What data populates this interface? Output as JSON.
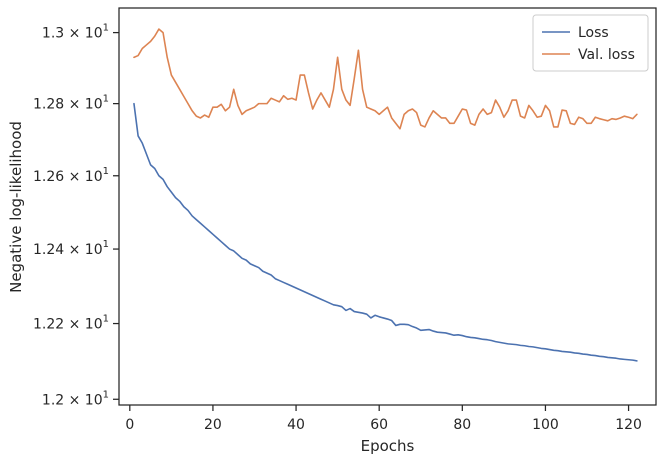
{
  "chart_data": {
    "type": "line",
    "title": "",
    "xlabel": "Epochs",
    "ylabel": "Negative log-likelihood",
    "xlim": [
      -2.6,
      126.6
    ],
    "ylim": [
      11.985,
      13.07
    ],
    "yscale": "log",
    "grid": false,
    "legend_position": "top-right",
    "x_ticks": [
      0,
      20,
      40,
      60,
      80,
      100,
      120
    ],
    "x_tick_labels": [
      "0",
      "20",
      "40",
      "60",
      "80",
      "100",
      "120"
    ],
    "y_ticks": [
      12.0,
      12.2,
      12.4,
      12.6,
      12.8,
      13.0
    ],
    "y_tick_labels": [
      {
        "mantissa": "1.2",
        "exp": "1"
      },
      {
        "mantissa": "1.22",
        "exp": "1"
      },
      {
        "mantissa": "1.24",
        "exp": "1"
      },
      {
        "mantissa": "1.26",
        "exp": "1"
      },
      {
        "mantissa": "1.28",
        "exp": "1"
      },
      {
        "mantissa": "1.3",
        "exp": "1"
      }
    ],
    "x_start": 1,
    "series": [
      {
        "name": "Loss",
        "color": "#4c72b0",
        "values": [
          12.8,
          12.71,
          12.69,
          12.66,
          12.63,
          12.62,
          12.6,
          12.59,
          12.57,
          12.555,
          12.54,
          12.53,
          12.515,
          12.505,
          12.49,
          12.48,
          12.47,
          12.46,
          12.45,
          12.44,
          12.43,
          12.42,
          12.41,
          12.4,
          12.395,
          12.385,
          12.375,
          12.37,
          12.36,
          12.355,
          12.35,
          12.34,
          12.335,
          12.33,
          12.32,
          12.315,
          12.31,
          12.305,
          12.3,
          12.295,
          12.29,
          12.285,
          12.28,
          12.275,
          12.27,
          12.265,
          12.26,
          12.255,
          12.25,
          12.248,
          12.245,
          12.235,
          12.24,
          12.232,
          12.23,
          12.228,
          12.225,
          12.215,
          12.222,
          12.218,
          12.215,
          12.212,
          12.208,
          12.195,
          12.198,
          12.198,
          12.197,
          12.192,
          12.188,
          12.182,
          12.183,
          12.184,
          12.18,
          12.177,
          12.176,
          12.175,
          12.172,
          12.169,
          12.17,
          12.168,
          12.165,
          12.163,
          12.162,
          12.16,
          12.158,
          12.157,
          12.155,
          12.152,
          12.15,
          12.148,
          12.146,
          12.145,
          12.144,
          12.142,
          12.141,
          12.139,
          12.138,
          12.136,
          12.134,
          12.133,
          12.131,
          12.129,
          12.128,
          12.126,
          12.125,
          12.124,
          12.122,
          12.121,
          12.119,
          12.118,
          12.116,
          12.115,
          12.113,
          12.112,
          12.11,
          12.109,
          12.108,
          12.106,
          12.105,
          12.104,
          12.103,
          12.101
        ]
      },
      {
        "name": "Val. loss",
        "color": "#dd8452",
        "values": [
          12.93,
          12.935,
          12.955,
          12.965,
          12.975,
          12.99,
          13.01,
          13.0,
          12.93,
          12.88,
          12.86,
          12.84,
          12.82,
          12.8,
          12.78,
          12.765,
          12.76,
          12.768,
          12.762,
          12.79,
          12.79,
          12.798,
          12.78,
          12.79,
          12.84,
          12.795,
          12.77,
          12.78,
          12.785,
          12.79,
          12.8,
          12.8,
          12.8,
          12.815,
          12.81,
          12.805,
          12.822,
          12.812,
          12.815,
          12.81,
          12.88,
          12.88,
          12.83,
          12.785,
          12.81,
          12.83,
          12.81,
          12.79,
          12.84,
          12.93,
          12.84,
          12.81,
          12.795,
          12.87,
          12.95,
          12.84,
          12.79,
          12.785,
          12.78,
          12.77,
          12.78,
          12.79,
          12.76,
          12.745,
          12.73,
          12.77,
          12.78,
          12.785,
          12.775,
          12.74,
          12.735,
          12.76,
          12.78,
          12.77,
          12.76,
          12.76,
          12.745,
          12.745,
          12.765,
          12.785,
          12.782,
          12.745,
          12.74,
          12.77,
          12.785,
          12.77,
          12.775,
          12.81,
          12.79,
          12.762,
          12.78,
          12.81,
          12.81,
          12.765,
          12.76,
          12.795,
          12.78,
          12.762,
          12.765,
          12.795,
          12.78,
          12.735,
          12.735,
          12.782,
          12.78,
          12.745,
          12.742,
          12.762,
          12.758,
          12.745,
          12.745,
          12.762,
          12.758,
          12.755,
          12.752,
          12.758,
          12.756,
          12.76,
          12.765,
          12.762,
          12.758,
          12.77
        ]
      }
    ]
  }
}
